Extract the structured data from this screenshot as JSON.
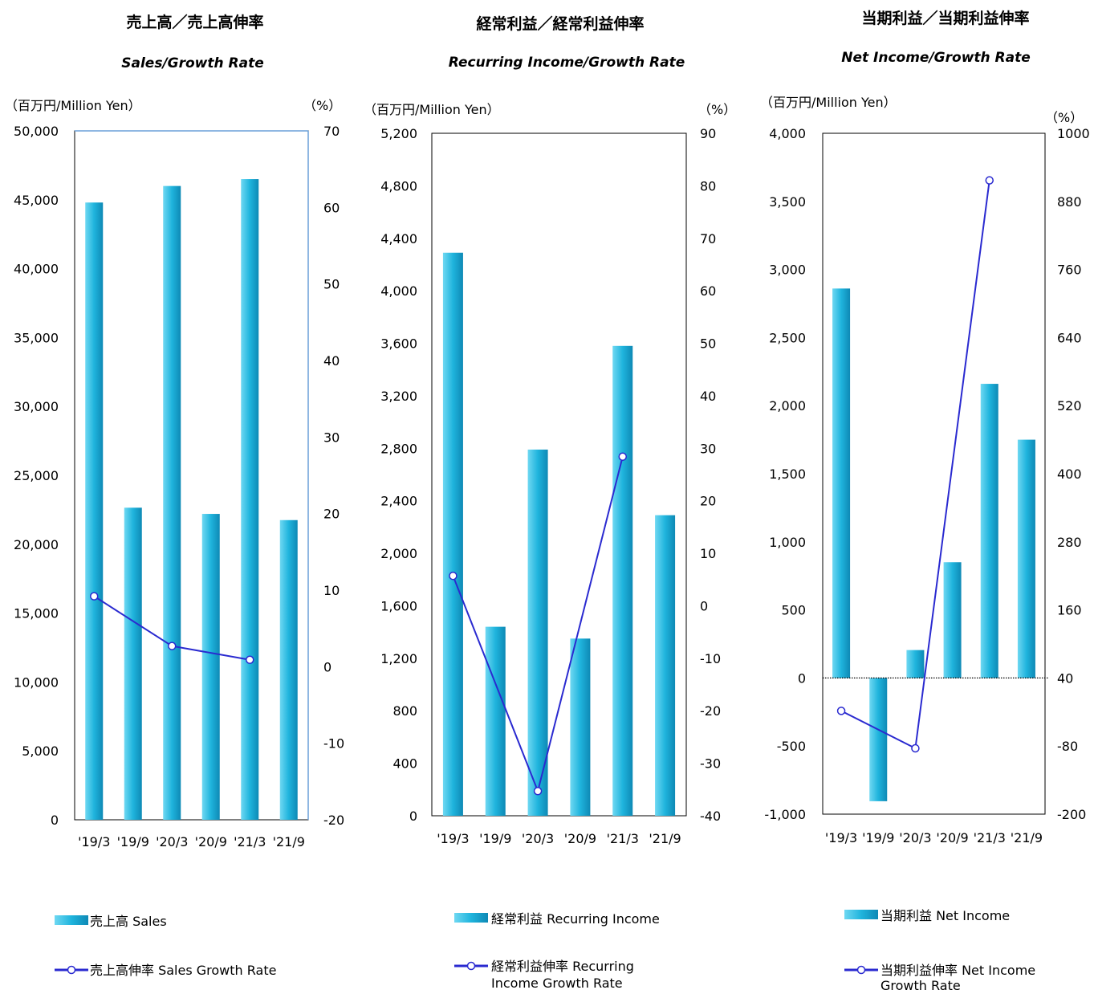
{
  "colors": {
    "bar": "#1fb4dd",
    "bar_light": "#6fd8f2",
    "bar_dark": "#0e89b5",
    "line": "#2a2ad0",
    "marker_fill": "#ffffff",
    "axis": "#000000",
    "plot_border_first": "#6a9fd8"
  },
  "chart_data": [
    {
      "type": "bar",
      "title": "売上高／売上高伸率",
      "subtitle": "Sales/Growth Rate",
      "ylabel": "（百万円/Million Yen）",
      "y2label": "（%）",
      "categories": [
        "'19/3",
        "'19/9",
        "'20/3",
        "'20/9",
        "'21/3",
        "'21/9"
      ],
      "ylim": [
        0,
        50000
      ],
      "y_ticks": [
        0,
        5000,
        10000,
        15000,
        20000,
        25000,
        30000,
        35000,
        40000,
        45000,
        50000
      ],
      "y_tick_labels": [
        "0",
        "5,000",
        "10,000",
        "15,000",
        "20,000",
        "25,000",
        "30,000",
        "35,000",
        "40,000",
        "45,000",
        "50,000"
      ],
      "y2lim": [
        -20,
        70
      ],
      "y2_ticks": [
        -20,
        -10,
        0,
        10,
        20,
        30,
        40,
        50,
        60,
        70
      ],
      "y2_tick_labels": [
        "-20",
        "-10",
        "0",
        "10",
        "20",
        "30",
        "40",
        "50",
        "60",
        "70"
      ],
      "series": [
        {
          "name": "売上高 Sales",
          "kind": "bar",
          "values": [
            44800,
            22650,
            46000,
            22200,
            46500,
            21750
          ]
        },
        {
          "name": "売上高伸率 Sales Growth Rate",
          "kind": "line",
          "axis": "right",
          "values": [
            9.2,
            null,
            2.7,
            null,
            0.9,
            null
          ]
        }
      ],
      "legend": [
        "売上高 Sales",
        "売上高伸率 Sales Growth Rate"
      ],
      "legend_position": "bottom"
    },
    {
      "type": "bar",
      "title": "経常利益／経常利益伸率",
      "subtitle": "Recurring Income/Growth Rate",
      "ylabel": "（百万円/Million Yen）",
      "y2label": "（%）",
      "categories": [
        "'19/3",
        "'19/9",
        "'20/3",
        "'20/9",
        "'21/3",
        "'21/9"
      ],
      "ylim": [
        0,
        5200
      ],
      "y_ticks": [
        0,
        400,
        800,
        1200,
        1600,
        2000,
        2400,
        2800,
        3200,
        3600,
        4000,
        4400,
        4800,
        5200
      ],
      "y_tick_labels": [
        "0",
        "400",
        "800",
        "1,200",
        "1,600",
        "2,000",
        "2,400",
        "2,800",
        "3,200",
        "3,600",
        "4,000",
        "4,400",
        "4,800",
        "5,200"
      ],
      "y2lim": [
        -40,
        90
      ],
      "y2_ticks": [
        -40,
        -30,
        -20,
        -10,
        0,
        10,
        20,
        30,
        40,
        50,
        60,
        70,
        80,
        90
      ],
      "y2_tick_labels": [
        "-40",
        "-30",
        "-20",
        "-10",
        "0",
        "10",
        "20",
        "30",
        "40",
        "50",
        "60",
        "70",
        "80",
        "90"
      ],
      "series": [
        {
          "name": "経常利益 Recurring Income",
          "kind": "bar",
          "values": [
            4290,
            1440,
            2790,
            1350,
            3580,
            2290
          ]
        },
        {
          "name": "経常利益伸率 Recurring Income Growth Rate",
          "kind": "line",
          "axis": "right",
          "values": [
            5.7,
            null,
            -35.3,
            null,
            28.4,
            null
          ]
        }
      ],
      "legend": [
        "経常利益 Recurring Income",
        "経常利益伸率 Recurring",
        "Income Growth Rate"
      ],
      "legend_position": "bottom"
    },
    {
      "type": "bar",
      "title": "当期利益／当期利益伸率",
      "subtitle": "Net Income/Growth Rate",
      "ylabel": "（百万円/Million Yen）",
      "y2label": "（%）",
      "categories": [
        "'19/3",
        "'19/9",
        "'20/3",
        "'20/9",
        "'21/3",
        "'21/9"
      ],
      "ylim": [
        -1000,
        4000
      ],
      "y_ticks": [
        -1000,
        -500,
        0,
        500,
        1000,
        1500,
        2000,
        2500,
        3000,
        3500,
        4000
      ],
      "y_tick_labels": [
        "-1,000",
        "-500",
        "0",
        "500",
        "1,000",
        "1,500",
        "2,000",
        "2,500",
        "3,000",
        "3,500",
        "4,000"
      ],
      "y2lim": [
        -200,
        1000
      ],
      "y2_ticks": [
        -200,
        -80,
        40,
        160,
        280,
        400,
        520,
        640,
        760,
        880,
        1000
      ],
      "y2_tick_labels": [
        "-200",
        "-80",
        "40",
        "160",
        "280",
        "400",
        "520",
        "640",
        "760",
        "880",
        "1000"
      ],
      "series": [
        {
          "name": "当期利益 Net Income",
          "kind": "bar",
          "values": [
            2860,
            -905,
            205,
            850,
            2160,
            1750
          ]
        },
        {
          "name": "当期利益伸率 Net Income Growth Rate",
          "kind": "line",
          "axis": "right",
          "values": [
            -18,
            null,
            -84,
            null,
            917,
            null
          ]
        }
      ],
      "legend": [
        "当期利益 Net Income",
        "当期利益伸率 Net Income",
        "Growth Rate"
      ],
      "legend_position": "bottom"
    }
  ]
}
